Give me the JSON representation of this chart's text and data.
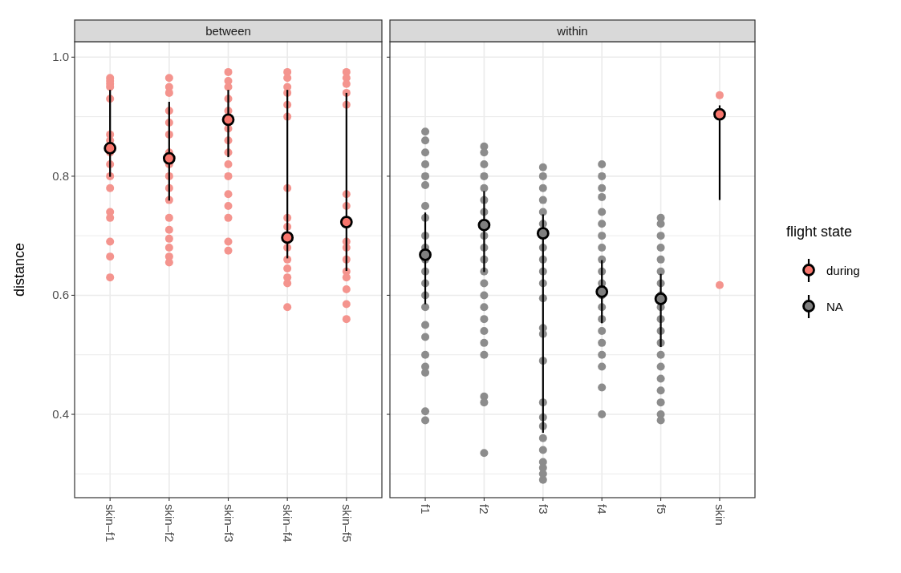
{
  "chart_data": [
    {
      "type": "scatter",
      "title": "between",
      "ylabel": "distance",
      "categories": [
        "skin–f1",
        "skin–f2",
        "skin–f3",
        "skin–f4",
        "skin–f5"
      ],
      "ylim": [
        0.26,
        1.026
      ],
      "yticks": [
        {
          "value": 0.3,
          "label": null
        },
        0.4,
        {
          "value": 0.5,
          "label": null
        },
        0.6,
        {
          "value": 0.7,
          "label": null
        },
        0.8,
        {
          "value": 0.9,
          "label": null
        },
        {
          "value": 1.0,
          "label": "1.0"
        }
      ],
      "grid": true,
      "marker": "circle",
      "series": [
        {
          "color": "#f4948e",
          "x": [
            "skin–f1",
            "skin–f1",
            "skin–f1",
            "skin–f1",
            "skin–f1",
            "skin–f1",
            "skin–f1",
            "skin–f1",
            "skin–f1",
            "skin–f1",
            "skin–f1",
            "skin–f1",
            "skin–f1",
            "skin–f1",
            "skin–f1",
            "skin–f1",
            "skin–f2",
            "skin–f2",
            "skin–f2",
            "skin–f2",
            "skin–f2",
            "skin–f2",
            "skin–f2",
            "skin–f2",
            "skin–f2",
            "skin–f2",
            "skin–f2",
            "skin–f2",
            "skin–f2",
            "skin–f2",
            "skin–f2",
            "skin–f2",
            "skin–f2",
            "skin–f3",
            "skin–f3",
            "skin–f3",
            "skin–f3",
            "skin–f3",
            "skin–f3",
            "skin–f3",
            "skin–f3",
            "skin–f3",
            "skin–f3",
            "skin–f3",
            "skin–f3",
            "skin–f3",
            "skin–f3",
            "skin–f3",
            "skin–f4",
            "skin–f4",
            "skin–f4",
            "skin–f4",
            "skin–f4",
            "skin–f4",
            "skin–f4",
            "skin–f4",
            "skin–f4",
            "skin–f4",
            "skin–f4",
            "skin–f4",
            "skin–f4",
            "skin–f4",
            "skin–f4",
            "skin–f5",
            "skin–f5",
            "skin–f5",
            "skin–f5",
            "skin–f5",
            "skin–f5",
            "skin–f5",
            "skin–f5",
            "skin–f5",
            "skin–f5",
            "skin–f5",
            "skin–f5",
            "skin–f5",
            "skin–f5",
            "skin–f5"
          ],
          "values": [
            0.965,
            0.96,
            0.955,
            0.95,
            0.93,
            0.87,
            0.86,
            0.84,
            0.82,
            0.8,
            0.78,
            0.74,
            0.73,
            0.69,
            0.665,
            0.63,
            0.965,
            0.95,
            0.94,
            0.91,
            0.89,
            0.87,
            0.84,
            0.82,
            0.8,
            0.78,
            0.76,
            0.73,
            0.71,
            0.695,
            0.68,
            0.665,
            0.655,
            0.975,
            0.96,
            0.95,
            0.93,
            0.91,
            0.88,
            0.86,
            0.84,
            0.82,
            0.8,
            0.77,
            0.75,
            0.73,
            0.69,
            0.675,
            0.975,
            0.965,
            0.95,
            0.94,
            0.92,
            0.9,
            0.78,
            0.73,
            0.715,
            0.68,
            0.66,
            0.645,
            0.63,
            0.62,
            0.58,
            0.975,
            0.965,
            0.955,
            0.94,
            0.92,
            0.77,
            0.75,
            0.69,
            0.68,
            0.66,
            0.64,
            0.63,
            0.61,
            0.585,
            0.56
          ]
        },
        {
          "color": "#f8766d",
          "values": [
            0.847,
            0.83,
            0.895,
            0.697,
            0.723
          ],
          "errors": [
            [
              0.799,
              0.945
            ],
            [
              0.759,
              0.925
            ],
            [
              0.832,
              0.945
            ],
            [
              0.662,
              0.945
            ],
            [
              0.641,
              0.94
            ]
          ]
        }
      ]
    },
    {
      "type": "scatter",
      "title": "within",
      "categories": [
        "f1",
        "f2",
        "f3",
        "f4",
        "f5",
        "skin"
      ],
      "ylim": [
        0.26,
        1.026
      ],
      "yticks": [
        {
          "value": 0.3,
          "label": null
        },
        0.4,
        {
          "value": 0.5,
          "label": null
        },
        0.6,
        {
          "value": 0.7,
          "label": null
        },
        0.8,
        {
          "value": 0.9,
          "label": null
        },
        1
      ],
      "tick_labels": "x",
      "grid": true,
      "marker": "circle",
      "legend": "right",
      "legend_title": "flight state",
      "series": [
        {
          "color": "#8c8c8c",
          "x": [
            "f1",
            "f1",
            "f1",
            "f1",
            "f1",
            "f1",
            "f1",
            "f1",
            "f1",
            "f1",
            "f1",
            "f1",
            "f1",
            "f1",
            "f1",
            "f1",
            "f1",
            "f1",
            "f1",
            "f1",
            "f1",
            "f1",
            "f2",
            "f2",
            "f2",
            "f2",
            "f2",
            "f2",
            "f2",
            "f2",
            "f2",
            "f2",
            "f2",
            "f2",
            "f2",
            "f2",
            "f2",
            "f2",
            "f2",
            "f2",
            "f2",
            "f2",
            "f2",
            "f3",
            "f3",
            "f3",
            "f3",
            "f3",
            "f3",
            "f3",
            "f3",
            "f3",
            "f3",
            "f3",
            "f3",
            "f3",
            "f3",
            "f3",
            "f3",
            "f3",
            "f3",
            "f3",
            "f3",
            "f3",
            "f3",
            "f3",
            "f4",
            "f4",
            "f4",
            "f4",
            "f4",
            "f4",
            "f4",
            "f4",
            "f4",
            "f4",
            "f4",
            "f4",
            "f4",
            "f4",
            "f4",
            "f4",
            "f4",
            "f4",
            "f4",
            "f4",
            "f5",
            "f5",
            "f5",
            "f5",
            "f5",
            "f5",
            "f5",
            "f5",
            "f5",
            "f5",
            "f5",
            "f5",
            "f5",
            "f5",
            "f5",
            "f5",
            "f5",
            "f5",
            "f5"
          ],
          "values": [
            0.875,
            0.86,
            0.84,
            0.82,
            0.8,
            0.785,
            0.75,
            0.73,
            0.7,
            0.68,
            0.66,
            0.64,
            0.62,
            0.6,
            0.58,
            0.55,
            0.53,
            0.5,
            0.48,
            0.47,
            0.405,
            0.39,
            0.85,
            0.84,
            0.82,
            0.8,
            0.78,
            0.76,
            0.74,
            0.7,
            0.68,
            0.66,
            0.64,
            0.62,
            0.6,
            0.58,
            0.56,
            0.54,
            0.52,
            0.5,
            0.43,
            0.42,
            0.335,
            0.815,
            0.8,
            0.78,
            0.76,
            0.74,
            0.72,
            0.68,
            0.66,
            0.64,
            0.62,
            0.595,
            0.545,
            0.535,
            0.49,
            0.42,
            0.395,
            0.38,
            0.36,
            0.34,
            0.32,
            0.31,
            0.3,
            0.29,
            0.82,
            0.8,
            0.78,
            0.765,
            0.74,
            0.72,
            0.7,
            0.68,
            0.66,
            0.64,
            0.62,
            0.6,
            0.58,
            0.56,
            0.54,
            0.52,
            0.5,
            0.48,
            0.445,
            0.4,
            0.73,
            0.72,
            0.7,
            0.68,
            0.66,
            0.64,
            0.62,
            0.6,
            0.58,
            0.56,
            0.54,
            0.52,
            0.5,
            0.48,
            0.46,
            0.44,
            0.42,
            0.4,
            0.39
          ]
        },
        {
          "color": "#f4948e",
          "x": [
            "skin",
            "skin"
          ],
          "values": [
            0.936,
            0.617
          ]
        },
        {
          "name": "during",
          "color": "#f8766d",
          "x": [
            "skin"
          ],
          "values": [
            0.904
          ],
          "errors": [
            [
              0.76,
              0.919
            ]
          ]
        },
        {
          "name": "NA",
          "color": "#7f7f7f",
          "x": [
            "f1",
            "f2",
            "f3",
            "f4",
            "f5"
          ],
          "values": [
            0.668,
            0.718,
            0.704,
            0.606,
            0.594
          ],
          "errors": [
            [
              0.585,
              0.739
            ],
            [
              0.639,
              0.775
            ],
            [
              0.369,
              0.736
            ],
            [
              0.553,
              0.659
            ],
            [
              0.513,
              0.636
            ]
          ]
        }
      ]
    }
  ]
}
